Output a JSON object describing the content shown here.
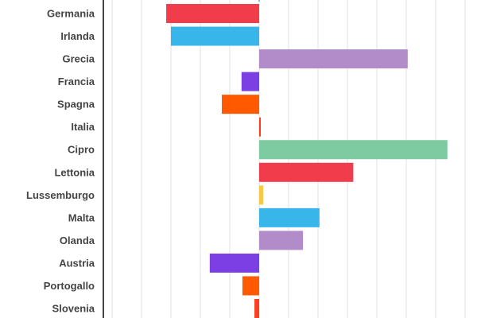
{
  "chart_data": {
    "type": "bar",
    "orientation": "horizontal",
    "title": "",
    "xlabel": "",
    "ylabel": "",
    "grid": true,
    "xlim": [
      -5.3,
      6.9
    ],
    "categories": [
      "Germania",
      "Irlanda",
      "Grecia",
      "Francia",
      "Spagna",
      "Italia",
      "Cipro",
      "Lettonia",
      "Lussemburgo",
      "Malta",
      "Olanda",
      "Austria",
      "Portogallo",
      "Slovenia"
    ],
    "values": [
      -3.16,
      -3.0,
      5.05,
      -0.6,
      -1.27,
      0.05,
      6.4,
      3.2,
      0.14,
      2.05,
      1.49,
      -1.68,
      -0.57,
      -0.16
    ],
    "colors": [
      "#f03c4b",
      "#38b6ea",
      "#b28cc9",
      "#7b3fe4",
      "#ff5a00",
      "#ff3d1f",
      "#7ecba1",
      "#f03c4b",
      "#f7c948",
      "#38b6ea",
      "#b28cc9",
      "#7b3fe4",
      "#ff5a00",
      "#ff3d1f"
    ]
  }
}
